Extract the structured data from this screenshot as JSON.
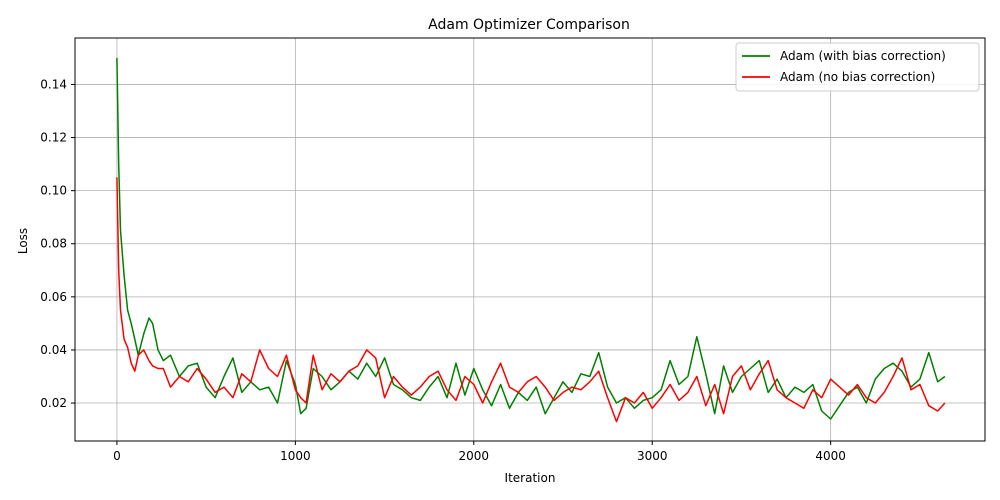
{
  "chart_data": {
    "type": "line",
    "title": "Adam Optimizer Comparison",
    "xlabel": "Iteration",
    "ylabel": "Loss",
    "xlim": [
      -235,
      4865
    ],
    "ylim": [
      0.0057,
      0.1575
    ],
    "xticks": [
      0,
      1000,
      2000,
      3000,
      4000
    ],
    "yticks": [
      0.02,
      0.04,
      0.06,
      0.08,
      0.1,
      0.12,
      0.14
    ],
    "ytick_labels": [
      "0.02",
      "0.04",
      "0.06",
      "0.08",
      "0.10",
      "0.12",
      "0.14"
    ],
    "grid": true,
    "legend_position": "top-right",
    "series": [
      {
        "name": "Adam (with bias correction)",
        "color": "#008000",
        "x": [
          0,
          10,
          20,
          40,
          60,
          80,
          100,
          120,
          150,
          180,
          200,
          230,
          260,
          300,
          350,
          400,
          450,
          500,
          550,
          600,
          650,
          700,
          750,
          800,
          850,
          900,
          950,
          1000,
          1030,
          1060,
          1100,
          1150,
          1200,
          1250,
          1300,
          1350,
          1400,
          1450,
          1500,
          1550,
          1600,
          1650,
          1700,
          1750,
          1800,
          1850,
          1900,
          1950,
          2000,
          2050,
          2100,
          2150,
          2200,
          2250,
          2300,
          2350,
          2400,
          2450,
          2500,
          2550,
          2600,
          2650,
          2700,
          2750,
          2800,
          2850,
          2900,
          2950,
          3000,
          3050,
          3100,
          3150,
          3200,
          3250,
          3300,
          3350,
          3400,
          3450,
          3500,
          3550,
          3600,
          3650,
          3700,
          3750,
          3800,
          3850,
          3900,
          3950,
          4000,
          4050,
          4100,
          4150,
          4200,
          4250,
          4300,
          4350,
          4400,
          4450,
          4500,
          4550,
          4600,
          4640
        ],
        "y": [
          0.15,
          0.11,
          0.085,
          0.068,
          0.055,
          0.05,
          0.044,
          0.038,
          0.046,
          0.052,
          0.05,
          0.04,
          0.036,
          0.038,
          0.03,
          0.034,
          0.035,
          0.026,
          0.022,
          0.03,
          0.037,
          0.024,
          0.028,
          0.025,
          0.026,
          0.02,
          0.036,
          0.027,
          0.016,
          0.018,
          0.033,
          0.03,
          0.025,
          0.028,
          0.032,
          0.029,
          0.035,
          0.03,
          0.037,
          0.027,
          0.025,
          0.022,
          0.021,
          0.026,
          0.03,
          0.022,
          0.035,
          0.023,
          0.033,
          0.025,
          0.019,
          0.027,
          0.018,
          0.024,
          0.021,
          0.026,
          0.016,
          0.022,
          0.028,
          0.024,
          0.031,
          0.03,
          0.039,
          0.026,
          0.02,
          0.022,
          0.018,
          0.021,
          0.022,
          0.025,
          0.036,
          0.027,
          0.03,
          0.045,
          0.031,
          0.016,
          0.034,
          0.024,
          0.03,
          0.033,
          0.036,
          0.024,
          0.029,
          0.022,
          0.026,
          0.024,
          0.027,
          0.017,
          0.014,
          0.019,
          0.024,
          0.026,
          0.02,
          0.029,
          0.033,
          0.035,
          0.032,
          0.026,
          0.029,
          0.039,
          0.028,
          0.03
        ]
      },
      {
        "name": "Adam (no bias correction)",
        "color": "#ff0000",
        "x": [
          0,
          10,
          20,
          40,
          60,
          80,
          100,
          120,
          150,
          180,
          200,
          230,
          260,
          300,
          350,
          400,
          450,
          500,
          550,
          600,
          650,
          700,
          750,
          800,
          850,
          900,
          950,
          1000,
          1030,
          1060,
          1100,
          1150,
          1200,
          1250,
          1300,
          1350,
          1400,
          1450,
          1500,
          1550,
          1600,
          1650,
          1700,
          1750,
          1800,
          1850,
          1900,
          1950,
          2000,
          2050,
          2100,
          2150,
          2200,
          2250,
          2300,
          2350,
          2400,
          2450,
          2500,
          2550,
          2600,
          2650,
          2700,
          2750,
          2800,
          2850,
          2900,
          2950,
          3000,
          3050,
          3100,
          3150,
          3200,
          3250,
          3300,
          3350,
          3400,
          3450,
          3500,
          3550,
          3600,
          3650,
          3700,
          3750,
          3800,
          3850,
          3900,
          3950,
          4000,
          4050,
          4100,
          4150,
          4200,
          4250,
          4300,
          4350,
          4400,
          4450,
          4500,
          4550,
          4600,
          4640
        ],
        "y": [
          0.105,
          0.07,
          0.055,
          0.044,
          0.041,
          0.035,
          0.032,
          0.038,
          0.04,
          0.036,
          0.034,
          0.033,
          0.033,
          0.026,
          0.03,
          0.028,
          0.033,
          0.029,
          0.024,
          0.026,
          0.022,
          0.031,
          0.028,
          0.04,
          0.033,
          0.03,
          0.038,
          0.025,
          0.022,
          0.02,
          0.038,
          0.025,
          0.031,
          0.028,
          0.032,
          0.034,
          0.04,
          0.037,
          0.022,
          0.03,
          0.026,
          0.023,
          0.026,
          0.03,
          0.032,
          0.025,
          0.021,
          0.03,
          0.027,
          0.02,
          0.028,
          0.035,
          0.026,
          0.024,
          0.028,
          0.03,
          0.026,
          0.021,
          0.024,
          0.026,
          0.025,
          0.028,
          0.032,
          0.022,
          0.013,
          0.022,
          0.02,
          0.024,
          0.018,
          0.022,
          0.027,
          0.021,
          0.024,
          0.03,
          0.019,
          0.027,
          0.016,
          0.03,
          0.034,
          0.025,
          0.031,
          0.036,
          0.025,
          0.022,
          0.02,
          0.018,
          0.025,
          0.022,
          0.029,
          0.026,
          0.023,
          0.027,
          0.022,
          0.02,
          0.024,
          0.03,
          0.037,
          0.025,
          0.027,
          0.019,
          0.017,
          0.02
        ]
      }
    ]
  }
}
